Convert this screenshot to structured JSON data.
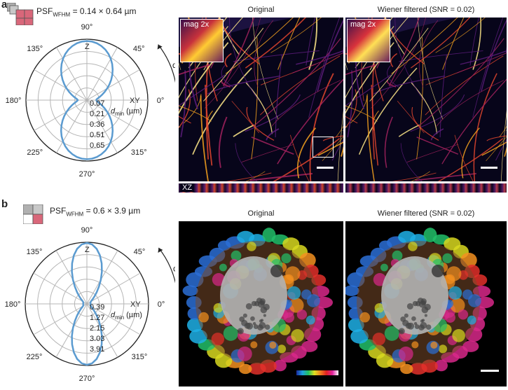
{
  "panel_a": {
    "letter": "a",
    "psf_label": "PSF",
    "psf_sub": "WFHM",
    "psf_value": " = 0.14 × 0.64 µm",
    "angles": {
      "deg90": "90°",
      "deg45": "45°",
      "deg0": "0°",
      "deg315": "315°",
      "deg270": "270°",
      "deg225": "225°",
      "deg180": "180°",
      "deg135": "135°"
    },
    "axis_z": "Z",
    "axis_xy": "XY",
    "alpha": "α",
    "dmin_label": "d",
    "dmin_sub": "min",
    "dmin_unit": " (µm)",
    "radial_ticks": [
      "0.07",
      "0.21",
      "0.36",
      "0.51",
      "0.65"
    ],
    "titles": {
      "original": "Original",
      "wiener": "Wiener filtered (SNR = 0.02)"
    },
    "mag_label": "mag 2x",
    "xz_label": "XZ"
  },
  "panel_b": {
    "letter": "b",
    "psf_label": "PSF",
    "psf_sub": "WFHM",
    "psf_value": " = 0.6 × 3.9  µm",
    "angles": {
      "deg90": "90°",
      "deg45": "45°",
      "deg0": "0°",
      "deg315": "315°",
      "deg270": "270°",
      "deg225": "225°",
      "deg180": "180°",
      "deg135": "135°"
    },
    "axis_z": "Z",
    "axis_xy": "XY",
    "alpha": "α",
    "dmin_label": "d",
    "dmin_sub": "min",
    "dmin_unit": " (µm)",
    "radial_ticks": [
      "0.39",
      "1.27",
      "2.15",
      "3.03",
      "3.91"
    ],
    "titles": {
      "original": "Original",
      "wiener": "Wiener filtered (SNR = 0.02)"
    }
  },
  "colors": {
    "curve": "#5b9bd0",
    "grid": "#b5b5b5",
    "psf_box": "#d9677a",
    "psf_box_grey": "#b0b0b0"
  }
}
